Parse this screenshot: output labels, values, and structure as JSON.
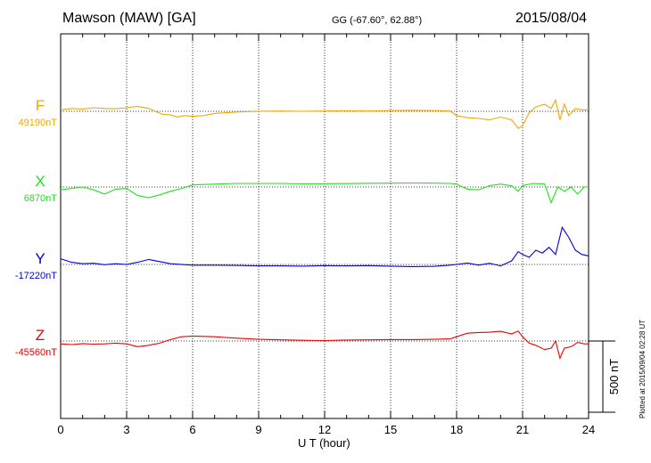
{
  "header": {
    "station": "Mawson (MAW)  [GA]",
    "coordinates": "GG (-67.60°,  62.88°)",
    "date": "2015/08/04"
  },
  "footer": {
    "plotted_note": "Plotted at 2015/09/04 02:28 UT"
  },
  "chart_data": {
    "type": "line",
    "title": "",
    "xlabel": "U T (hour)",
    "ylabel": "",
    "xlim": [
      0,
      24
    ],
    "x_ticks": [
      "0",
      "3",
      "6",
      "9",
      "12",
      "15",
      "18",
      "21",
      "24"
    ],
    "grid": true,
    "scale_bar": {
      "label": "500 nT",
      "value": 500
    },
    "series": [
      {
        "name": "F",
        "baseline_label": "49190nT",
        "baseline": 49190,
        "color": "#f0a800",
        "points": [
          [
            0,
            49200
          ],
          [
            0.5,
            49210
          ],
          [
            1,
            49205
          ],
          [
            1.5,
            49215
          ],
          [
            2,
            49210
          ],
          [
            2.5,
            49208
          ],
          [
            3,
            49215
          ],
          [
            3.5,
            49225
          ],
          [
            4,
            49210
          ],
          [
            4.3,
            49190
          ],
          [
            4.6,
            49170
          ],
          [
            5,
            49165
          ],
          [
            5.3,
            49150
          ],
          [
            5.6,
            49160
          ],
          [
            6,
            49155
          ],
          [
            6.5,
            49160
          ],
          [
            7,
            49175
          ],
          [
            7.5,
            49180
          ],
          [
            8,
            49185
          ],
          [
            9,
            49190
          ],
          [
            10,
            49192
          ],
          [
            11,
            49190
          ],
          [
            12,
            49192
          ],
          [
            13,
            49193
          ],
          [
            14,
            49192
          ],
          [
            15,
            49195
          ],
          [
            16,
            49197
          ],
          [
            17,
            49195
          ],
          [
            17.7,
            49192
          ],
          [
            18,
            49160
          ],
          [
            18.5,
            49145
          ],
          [
            19,
            49140
          ],
          [
            19.5,
            49130
          ],
          [
            20,
            49150
          ],
          [
            20.5,
            49130
          ],
          [
            20.8,
            49070
          ],
          [
            21,
            49090
          ],
          [
            21.3,
            49180
          ],
          [
            21.6,
            49220
          ],
          [
            22,
            49240
          ],
          [
            22.3,
            49210
          ],
          [
            22.5,
            49270
          ],
          [
            22.7,
            49130
          ],
          [
            22.9,
            49240
          ],
          [
            23.1,
            49160
          ],
          [
            23.4,
            49210
          ],
          [
            23.7,
            49200
          ],
          [
            24,
            49200
          ]
        ]
      },
      {
        "name": "X",
        "baseline_label": "6870nT",
        "baseline": 6870,
        "color": "#22e022",
        "points": [
          [
            0,
            6850
          ],
          [
            0.5,
            6860
          ],
          [
            1,
            6870
          ],
          [
            1.5,
            6850
          ],
          [
            2,
            6820
          ],
          [
            2.5,
            6855
          ],
          [
            3,
            6860
          ],
          [
            3.5,
            6810
          ],
          [
            4,
            6795
          ],
          [
            4.5,
            6815
          ],
          [
            5,
            6840
          ],
          [
            5.5,
            6860
          ],
          [
            6,
            6885
          ],
          [
            7,
            6890
          ],
          [
            8,
            6895
          ],
          [
            9,
            6895
          ],
          [
            10,
            6895
          ],
          [
            11,
            6892
          ],
          [
            12,
            6893
          ],
          [
            13,
            6894
          ],
          [
            14,
            6896
          ],
          [
            15,
            6897
          ],
          [
            16,
            6898
          ],
          [
            17,
            6897
          ],
          [
            17.7,
            6895
          ],
          [
            18,
            6890
          ],
          [
            18.5,
            6855
          ],
          [
            19,
            6850
          ],
          [
            19.5,
            6880
          ],
          [
            20,
            6890
          ],
          [
            20.5,
            6878
          ],
          [
            20.8,
            6840
          ],
          [
            21,
            6880
          ],
          [
            21.5,
            6895
          ],
          [
            22,
            6890
          ],
          [
            22.3,
            6760
          ],
          [
            22.6,
            6870
          ],
          [
            22.9,
            6840
          ],
          [
            23.2,
            6870
          ],
          [
            23.5,
            6820
          ],
          [
            23.8,
            6870
          ],
          [
            24,
            6870
          ]
        ]
      },
      {
        "name": "Y",
        "baseline_label": "-17220nT",
        "baseline": -17220,
        "color": "#0000dd",
        "points": [
          [
            0,
            -17180
          ],
          [
            0.5,
            -17205
          ],
          [
            1,
            -17215
          ],
          [
            1.5,
            -17212
          ],
          [
            2,
            -17222
          ],
          [
            2.5,
            -17215
          ],
          [
            3,
            -17220
          ],
          [
            3.5,
            -17205
          ],
          [
            4,
            -17185
          ],
          [
            4.5,
            -17200
          ],
          [
            5,
            -17215
          ],
          [
            6,
            -17225
          ],
          [
            7,
            -17225
          ],
          [
            8,
            -17227
          ],
          [
            9,
            -17230
          ],
          [
            10,
            -17230
          ],
          [
            11,
            -17232
          ],
          [
            12,
            -17228
          ],
          [
            13,
            -17230
          ],
          [
            14,
            -17228
          ],
          [
            15,
            -17232
          ],
          [
            16,
            -17235
          ],
          [
            17,
            -17233
          ],
          [
            17.7,
            -17225
          ],
          [
            18,
            -17220
          ],
          [
            18.5,
            -17210
          ],
          [
            19,
            -17225
          ],
          [
            19.5,
            -17212
          ],
          [
            20,
            -17230
          ],
          [
            20.5,
            -17195
          ],
          [
            20.8,
            -17130
          ],
          [
            21,
            -17150
          ],
          [
            21.3,
            -17170
          ],
          [
            21.6,
            -17120
          ],
          [
            21.9,
            -17140
          ],
          [
            22.2,
            -17100
          ],
          [
            22.5,
            -17150
          ],
          [
            22.8,
            -16960
          ],
          [
            23.1,
            -17030
          ],
          [
            23.4,
            -17120
          ],
          [
            23.7,
            -17150
          ],
          [
            24,
            -17160
          ]
        ]
      },
      {
        "name": "Z",
        "baseline_label": "-45560nT",
        "baseline": -45560,
        "color": "#ee0000",
        "points": [
          [
            0,
            -45580
          ],
          [
            0.5,
            -45585
          ],
          [
            1,
            -45578
          ],
          [
            1.5,
            -45582
          ],
          [
            2,
            -45580
          ],
          [
            2.5,
            -45575
          ],
          [
            3,
            -45580
          ],
          [
            3.5,
            -45600
          ],
          [
            4,
            -45590
          ],
          [
            4.5,
            -45575
          ],
          [
            5,
            -45550
          ],
          [
            5.5,
            -45530
          ],
          [
            6,
            -45525
          ],
          [
            7,
            -45530
          ],
          [
            8,
            -45540
          ],
          [
            9,
            -45548
          ],
          [
            10,
            -45552
          ],
          [
            11,
            -45555
          ],
          [
            12,
            -45557
          ],
          [
            13,
            -45553
          ],
          [
            14,
            -45552
          ],
          [
            15,
            -45550
          ],
          [
            16,
            -45550
          ],
          [
            17,
            -45548
          ],
          [
            17.7,
            -45545
          ],
          [
            18,
            -45530
          ],
          [
            18.5,
            -45505
          ],
          [
            19,
            -45500
          ],
          [
            19.5,
            -45498
          ],
          [
            20,
            -45492
          ],
          [
            20.5,
            -45510
          ],
          [
            20.8,
            -45490
          ],
          [
            21,
            -45530
          ],
          [
            21.3,
            -45575
          ],
          [
            21.6,
            -45590
          ],
          [
            22,
            -45620
          ],
          [
            22.3,
            -45610
          ],
          [
            22.5,
            -45560
          ],
          [
            22.7,
            -45680
          ],
          [
            22.9,
            -45610
          ],
          [
            23.2,
            -45600
          ],
          [
            23.5,
            -45570
          ],
          [
            23.8,
            -45580
          ],
          [
            24,
            -45580
          ]
        ]
      }
    ]
  }
}
